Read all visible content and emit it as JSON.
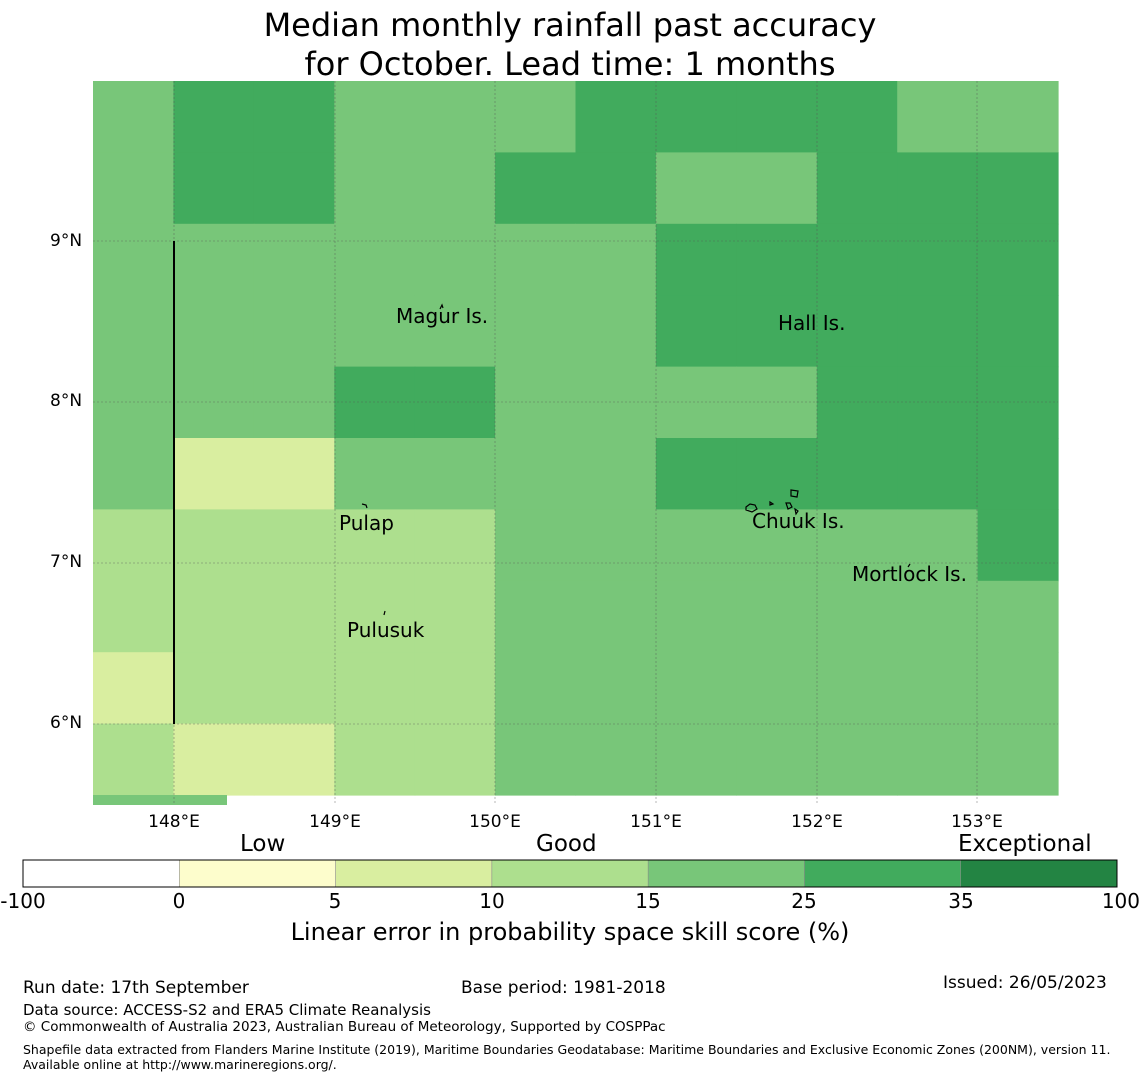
{
  "title": {
    "line1": "Median monthly rainfall past accuracy",
    "line2": "for October. Lead time: 1 months"
  },
  "colors": {
    "bins": [
      "#ffffff",
      "#fdfdcc",
      "#d9eea0",
      "#addf8e",
      "#78c679",
      "#41ab5d",
      "#238443"
    ],
    "gridline": "#555555"
  },
  "map": {
    "lat_labels": [
      "9°N",
      "8°N",
      "7°N",
      "6°N"
    ],
    "lon_labels": [
      "148°E",
      "149°E",
      "150°E",
      "151°E",
      "152°E",
      "153°E"
    ],
    "places": [
      "Magur Is.",
      "Hall Is.",
      "Pulap",
      "Chuuk Is.",
      "Mortlock Is.",
      "Pulusuk"
    ],
    "skill_grid_bins": [
      [
        4,
        5,
        5,
        4,
        4,
        4,
        5,
        5,
        5,
        5,
        4,
        4
      ],
      [
        4,
        5,
        5,
        4,
        4,
        5,
        5,
        4,
        4,
        5,
        5,
        5
      ],
      [
        4,
        4,
        4,
        4,
        4,
        4,
        4,
        5,
        5,
        5,
        5,
        5
      ],
      [
        4,
        4,
        4,
        4,
        4,
        4,
        4,
        5,
        5,
        5,
        5,
        5
      ],
      [
        4,
        4,
        4,
        5,
        5,
        4,
        4,
        4,
        4,
        5,
        5,
        5
      ],
      [
        4,
        2,
        2,
        4,
        4,
        4,
        4,
        5,
        5,
        5,
        5,
        5
      ],
      [
        3,
        3,
        3,
        3,
        3,
        4,
        4,
        4,
        4,
        4,
        4,
        5
      ],
      [
        3,
        3,
        3,
        3,
        3,
        4,
        4,
        4,
        4,
        4,
        4,
        4
      ],
      [
        2,
        3,
        3,
        3,
        3,
        4,
        4,
        4,
        4,
        4,
        4,
        4
      ],
      [
        3,
        2,
        2,
        3,
        3,
        4,
        4,
        4,
        4,
        4,
        4,
        4
      ]
    ]
  },
  "colorbar": {
    "categories": [
      "Low",
      "Good",
      "Exceptional"
    ],
    "ticks": [
      "-100",
      "0",
      "5",
      "10",
      "15",
      "25",
      "35",
      "100"
    ],
    "label": "Linear error in probability space skill score (%)"
  },
  "footer": {
    "run_date": "Run date: 17th September",
    "base_period": "Base period: 1981-2018",
    "issued": "Issued: 26/05/2023",
    "data_source": "Data source: ACCESS-S2 and ERA5 Climate Reanalysis",
    "copyright": "© Commonwealth of Australia 2023, Australian Bureau of Meteorology, Supported by COSPPac",
    "shapefile": "Shapefile data extracted from Flanders Marine Institute (2019), Maritime Boundaries Geodatabase: Maritime Boundaries and Exclusive Economic Zones (200NM), version 11. Available online at http://www.marineregions.org/."
  }
}
